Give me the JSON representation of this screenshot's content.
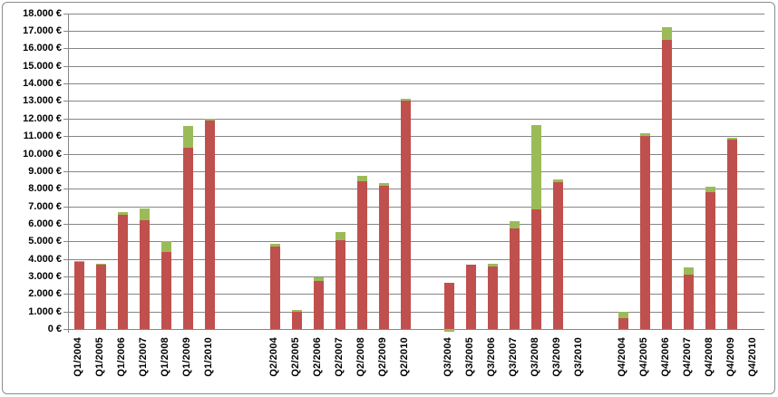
{
  "chart_data": {
    "type": "bar",
    "stacked": true,
    "title": "",
    "xlabel": "",
    "ylabel": "",
    "legend": "none",
    "grid": true,
    "currency_suffix": "€",
    "ylim": [
      0,
      18000
    ],
    "ytick_step": 1000,
    "y_tick_labels": [
      "0 €",
      "1.000 €",
      "2.000 €",
      "3.000 €",
      "4.000 €",
      "5.000 €",
      "6.000 €",
      "7.000 €",
      "8.000 €",
      "9.000 €",
      "10.000 €",
      "11.000 €",
      "12.000 €",
      "13.000 €",
      "14.000 €",
      "15.000 €",
      "16.000 €",
      "17.000 €",
      "18.000 €"
    ],
    "categories": [
      "Q1/2004",
      "Q1/2005",
      "Q1/2006",
      "Q1/2007",
      "Q1/2008",
      "Q1/2009",
      "Q1/2010",
      "Q2/2004",
      "Q2/2005",
      "Q2/2006",
      "Q2/2007",
      "Q2/2008",
      "Q2/2009",
      "Q2/2010",
      "Q3/2004",
      "Q3/2005",
      "Q3/2006",
      "Q3/2007",
      "Q3/2008",
      "Q3/2009",
      "Q3/2010",
      "Q4/2004",
      "Q4/2005",
      "Q4/2006",
      "Q4/2007",
      "Q4/2008",
      "Q4/2009",
      "Q4/2010"
    ],
    "slots": [
      0,
      1,
      2,
      3,
      4,
      5,
      6,
      9,
      10,
      11,
      12,
      13,
      14,
      15,
      17,
      18,
      19,
      20,
      21,
      22,
      23,
      25,
      26,
      27,
      28,
      29,
      30,
      31
    ],
    "total_slots": 32,
    "series": [
      {
        "name": "red",
        "color": "#C0504D",
        "values": [
          3800,
          3650,
          6500,
          6200,
          4400,
          10350,
          11900,
          4700,
          1000,
          2750,
          5050,
          8400,
          8150,
          13000,
          2650,
          3650,
          3550,
          5750,
          6800,
          8350,
          0,
          600,
          11000,
          16500,
          3100,
          7800,
          10800,
          0
        ]
      },
      {
        "name": "green",
        "color": "#9BBB59",
        "values": [
          100,
          50,
          150,
          650,
          600,
          1250,
          100,
          150,
          100,
          200,
          500,
          350,
          150,
          150,
          -150,
          0,
          170,
          400,
          4850,
          200,
          0,
          400,
          150,
          700,
          400,
          300,
          100,
          0
        ]
      }
    ],
    "totals": [
      3900,
      3700,
      6650,
      6850,
      5000,
      11600,
      12000,
      4850,
      1100,
      2950,
      5550,
      8750,
      8300,
      13150,
      2650,
      3650,
      3720,
      6150,
      11650,
      8550,
      0,
      1000,
      11150,
      17200,
      3500,
      8100,
      10900,
      0
    ]
  },
  "colors": {
    "bar_red": "#C0504D",
    "bar_green": "#9BBB59",
    "gridline": "#868686",
    "border": "#8C8C8C",
    "text": "#000000",
    "background": "#FFFFFF"
  }
}
